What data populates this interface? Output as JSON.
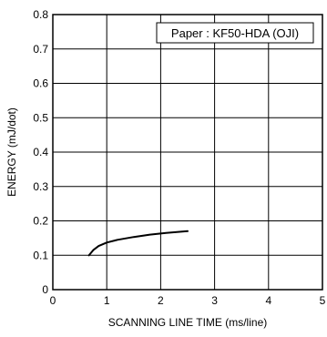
{
  "chart_data": {
    "type": "line",
    "xlabel": "SCANNING  LINE  TIME (ms/line)",
    "ylabel": "ENERGY (mJ/dot)",
    "xlim": [
      0,
      5
    ],
    "ylim": [
      0,
      0.8
    ],
    "xticks": [
      "0",
      "1",
      "2",
      "3",
      "4",
      "5"
    ],
    "yticks": [
      "0",
      "0.1",
      "0.2",
      "0.3",
      "0.4",
      "0.5",
      "0.6",
      "0.7",
      "0.8"
    ],
    "grid": true,
    "legend": {
      "text": "Paper : KF50-HDA (OJI)",
      "placement": "top-right"
    },
    "series": [
      {
        "x": [
          0.67,
          0.75,
          0.85,
          1.0,
          1.2,
          1.5,
          1.8,
          2.1,
          2.5
        ],
        "y": [
          0.1,
          0.115,
          0.127,
          0.137,
          0.145,
          0.153,
          0.16,
          0.165,
          0.17
        ]
      }
    ]
  },
  "colors": {
    "line": "#000000",
    "grid": "#000000",
    "background": "#ffffff"
  }
}
